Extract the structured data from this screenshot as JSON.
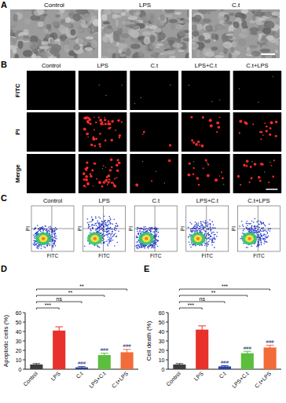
{
  "panels": [
    {
      "letter": "A",
      "labels": [
        "Control",
        "LPS",
        "C.t"
      ]
    },
    {
      "letter": "B",
      "columns": [
        "Control",
        "LPS",
        "C.t",
        "LPS+C.t",
        "C.t+LPS"
      ],
      "rows": [
        "FITC",
        "PI",
        "Merge"
      ]
    },
    {
      "letter": "C",
      "columns": [
        "Control",
        "LPS",
        "C.t",
        "LPS+C.t",
        "C.t+LPS"
      ],
      "x_label": "FITC",
      "y_label": "PI"
    },
    {
      "letter": "D"
    },
    {
      "letter": "E"
    }
  ],
  "chart_data": [
    {
      "type": "bar",
      "y_label": "Apoptotic cells (%)",
      "categories": [
        "Control",
        "LPS",
        "C.t",
        "LPS+C.t",
        "C.t+LPS"
      ],
      "values": [
        5,
        41,
        2,
        15,
        18
      ],
      "errors": [
        1,
        4,
        0.8,
        2,
        3
      ],
      "colors": [
        "#3d3d3d",
        "#e8312a",
        "#2743a6",
        "#5bbf3d",
        "#f26b38"
      ],
      "ylim": [
        0,
        60
      ],
      "yticks": [
        0,
        10,
        20,
        30,
        40,
        50,
        60
      ],
      "comparisons": [
        {
          "label": "***",
          "pair": [
            "Control",
            "LPS"
          ]
        },
        {
          "label": "ns",
          "pair": [
            "Control",
            "C.t"
          ]
        },
        {
          "label": "**",
          "pair": [
            "Control",
            "LPS+C.t"
          ]
        },
        {
          "label": "**",
          "pair": [
            "Control",
            "C.t+LPS"
          ]
        }
      ],
      "annotations": [
        null,
        null,
        "###",
        "###",
        "###"
      ]
    },
    {
      "type": "bar",
      "y_label": "Cell death (%)",
      "categories": [
        "Control",
        "LPS",
        "C.t",
        "LPS+C.t",
        "C.t+LPS"
      ],
      "values": [
        5,
        42,
        3,
        17,
        23
      ],
      "errors": [
        1,
        4,
        0.8,
        2,
        2.5
      ],
      "colors": [
        "#3d3d3d",
        "#e8312a",
        "#2743a6",
        "#5bbf3d",
        "#f26b38"
      ],
      "ylim": [
        0,
        60
      ],
      "yticks": [
        0,
        10,
        20,
        30,
        40,
        50,
        60
      ],
      "comparisons": [
        {
          "label": "***",
          "pair": [
            "Control",
            "LPS"
          ]
        },
        {
          "label": "ns",
          "pair": [
            "Control",
            "C.t"
          ]
        },
        {
          "label": "**",
          "pair": [
            "Control",
            "LPS+C.t"
          ]
        },
        {
          "label": "***",
          "pair": [
            "Control",
            "C.t+LPS"
          ]
        }
      ],
      "annotations": [
        null,
        null,
        "###",
        "###",
        "###"
      ]
    }
  ]
}
